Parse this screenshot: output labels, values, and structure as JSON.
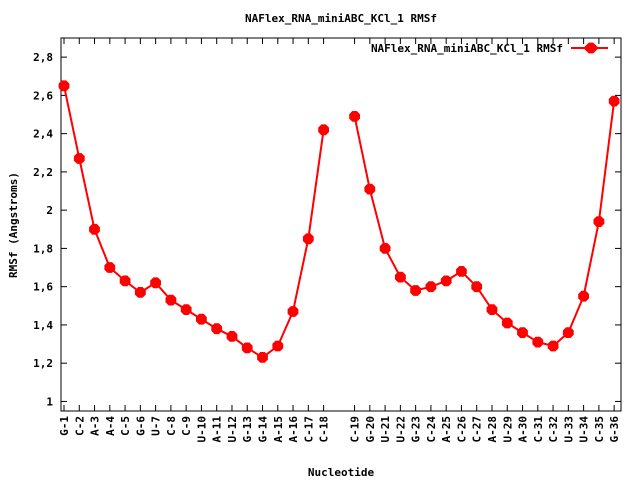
{
  "chart_data": {
    "type": "line",
    "title": "NAFlex_RNA_miniABC_KCl_1 RMSf",
    "xlabel": "Nucleotide",
    "ylabel": "RMSf (Angstroms)",
    "ylim": [
      0.95,
      2.9
    ],
    "yticks": [
      1,
      1.2,
      1.4,
      1.6,
      1.8,
      2,
      2.2,
      2.4,
      2.6,
      2.8
    ],
    "ytick_labels": [
      "1",
      "1,2",
      "1,4",
      "1,6",
      "1,8",
      "2",
      "2,2",
      "2,4",
      "2,6",
      "2,8"
    ],
    "legend_position": "top-right",
    "series_color": "#ff0000",
    "x": [
      "G-1",
      "C-2",
      "A-3",
      "A-4",
      "C-5",
      "G-6",
      "U-7",
      "C-8",
      "C-9",
      "U-10",
      "A-11",
      "U-12",
      "G-13",
      "G-14",
      "A-15",
      "A-16",
      "C-17",
      "C-18",
      "C-19",
      "G-20",
      "U-21",
      "U-22",
      "G-23",
      "C-24",
      "A-25",
      "C-26",
      "C-27",
      "A-28",
      "U-29",
      "A-30",
      "C-31",
      "C-32",
      "U-33",
      "U-34",
      "C-35",
      "G-36"
    ],
    "series": [
      {
        "name": "NAFlex_RNA_miniABC_KCl_1 RMSf",
        "segments": [
          [
            2.65,
            2.27,
            1.9,
            1.7,
            1.63,
            1.57,
            1.62,
            1.53,
            1.48,
            1.43,
            1.38,
            1.34,
            1.28,
            1.23,
            1.29,
            1.47,
            1.85,
            2.42
          ],
          [
            2.49,
            2.11,
            1.8,
            1.65,
            1.58,
            1.6,
            1.63,
            1.68,
            1.6,
            1.48,
            1.41,
            1.36,
            1.31,
            1.29,
            1.36,
            1.55,
            1.94,
            2.57
          ]
        ]
      }
    ]
  }
}
